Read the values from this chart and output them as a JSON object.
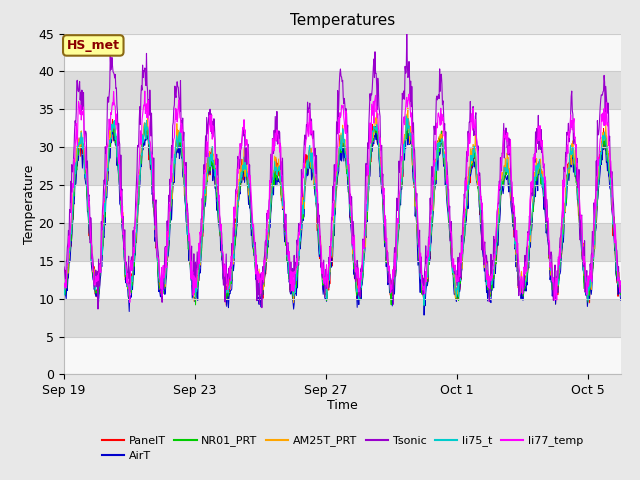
{
  "title": "Temperatures",
  "xlabel": "Time",
  "ylabel": "Temperature",
  "ylim": [
    0,
    45
  ],
  "yticks": [
    0,
    5,
    10,
    15,
    20,
    25,
    30,
    35,
    40,
    45
  ],
  "xtick_labels": [
    "Sep 19",
    "Sep 23",
    "Sep 27",
    "Oct 1",
    "Oct 5"
  ],
  "xtick_positions": [
    0,
    4,
    8,
    12,
    16
  ],
  "annotation_text": "HS_met",
  "series_colors": {
    "PanelT": "#ff0000",
    "AirT": "#0000cc",
    "NR01_PRT": "#00cc00",
    "AM25T_PRT": "#ffa500",
    "Tsonic": "#9900cc",
    "li75_t": "#00cccc",
    "li77_temp": "#ff00ff"
  },
  "bg_color": "#e8e8e8",
  "band_gray": "#dcdcdc",
  "band_white": "#f8f8f8",
  "grid_color": "#cccccc",
  "n_points": 1000,
  "end_day": 17,
  "seed": 42,
  "figsize": [
    6.4,
    4.8
  ],
  "dpi": 100
}
